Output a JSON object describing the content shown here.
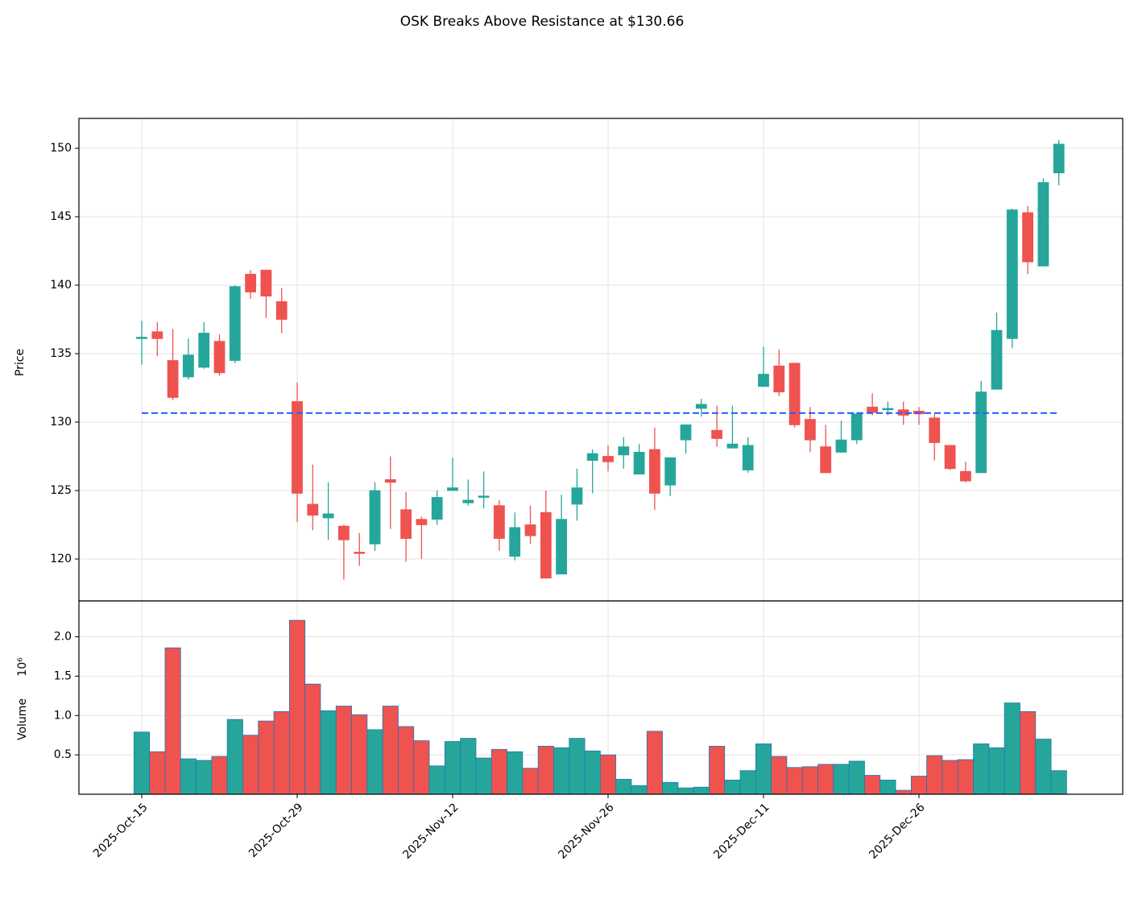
{
  "chart_data": {
    "type": "candlestick",
    "title": "OSK Breaks Above Resistance at $130.66",
    "ylabel": "Price",
    "ylim": [
      116.94,
      152.18
    ],
    "yticks": [
      120,
      125,
      130,
      135,
      140,
      145,
      150
    ],
    "grid": true,
    "up_color": "#26a69a",
    "down_color": "#ef5350",
    "resistance": 130.66,
    "resistance_color": "#2962ff",
    "categories": [
      "2025-Oct-15",
      null,
      null,
      null,
      null,
      null,
      null,
      null,
      null,
      null,
      "2025-Oct-29",
      null,
      null,
      null,
      null,
      null,
      null,
      null,
      null,
      null,
      "2025-Nov-12",
      null,
      null,
      null,
      null,
      null,
      null,
      null,
      null,
      null,
      "2025-Nov-26",
      null,
      null,
      null,
      null,
      null,
      null,
      null,
      null,
      null,
      "2025-Dec-11",
      null,
      null,
      null,
      null,
      null,
      null,
      null,
      null,
      null,
      "2025-Dec-26",
      null,
      null,
      null,
      null,
      null,
      null,
      null,
      null,
      null
    ],
    "open": [
      136.1,
      136.6,
      134.5,
      133.3,
      134.0,
      135.9,
      134.5,
      140.8,
      141.1,
      138.8,
      131.5,
      124.0,
      123.0,
      122.4,
      120.5,
      121.1,
      125.8,
      123.6,
      122.9,
      122.9,
      125.0,
      124.1,
      124.5,
      123.9,
      120.2,
      122.5,
      123.4,
      118.9,
      124.0,
      127.2,
      127.5,
      127.6,
      126.2,
      128.0,
      125.4,
      128.7,
      131.0,
      129.4,
      128.1,
      126.5,
      132.6,
      134.1,
      134.3,
      130.2,
      128.2,
      127.8,
      128.7,
      131.1,
      130.9,
      130.9,
      130.8,
      130.3,
      128.3,
      126.4,
      126.3,
      132.4,
      136.1,
      145.3,
      141.4,
      148.2
    ],
    "high": [
      137.4,
      137.3,
      136.8,
      136.1,
      137.3,
      136.4,
      140.0,
      141.1,
      141.1,
      139.8,
      132.9,
      126.9,
      125.6,
      122.5,
      121.9,
      125.6,
      127.5,
      124.9,
      123.1,
      125.0,
      127.4,
      125.8,
      126.4,
      124.3,
      123.4,
      123.9,
      125.0,
      124.7,
      126.6,
      128.0,
      128.3,
      128.9,
      128.4,
      129.6,
      127.4,
      129.8,
      131.7,
      131.2,
      131.2,
      128.9,
      135.5,
      135.3,
      134.3,
      131.1,
      129.8,
      130.1,
      130.7,
      132.1,
      131.5,
      131.5,
      131.1,
      130.6,
      128.3,
      127.1,
      133.0,
      138.0,
      145.6,
      145.8,
      147.8,
      150.6
    ],
    "low": [
      134.2,
      134.8,
      131.6,
      133.1,
      133.9,
      133.4,
      134.3,
      139.0,
      137.6,
      136.5,
      122.7,
      122.1,
      121.4,
      118.5,
      119.5,
      120.6,
      122.2,
      119.8,
      120.0,
      122.5,
      125.0,
      123.9,
      123.7,
      120.6,
      119.9,
      121.1,
      118.6,
      118.9,
      122.8,
      124.8,
      126.4,
      126.6,
      126.2,
      123.6,
      124.6,
      127.7,
      130.4,
      128.2,
      128.1,
      126.3,
      132.6,
      131.9,
      129.6,
      127.8,
      126.3,
      127.8,
      128.4,
      130.5,
      130.5,
      129.8,
      129.8,
      127.2,
      126.5,
      125.6,
      126.3,
      132.4,
      135.4,
      140.8,
      141.4,
      147.3
    ],
    "close": [
      136.2,
      136.1,
      131.8,
      134.9,
      136.5,
      133.6,
      139.9,
      139.5,
      139.2,
      137.5,
      124.8,
      123.2,
      123.3,
      121.4,
      120.4,
      125.0,
      125.6,
      121.5,
      122.5,
      124.5,
      125.2,
      124.3,
      124.6,
      121.5,
      122.3,
      121.7,
      118.6,
      122.9,
      125.2,
      127.7,
      127.1,
      128.2,
      127.8,
      124.8,
      127.4,
      129.8,
      131.3,
      128.8,
      128.4,
      128.3,
      133.5,
      132.2,
      129.8,
      128.7,
      126.3,
      128.7,
      130.6,
      130.7,
      131.0,
      130.5,
      130.6,
      128.5,
      126.6,
      125.7,
      132.2,
      136.7,
      145.5,
      141.7,
      147.5,
      150.3
    ],
    "volume": {
      "ylabel": "Volume",
      "scale_label": "10⁶",
      "ylim": [
        0,
        2.456
      ],
      "yticks": [
        0.5,
        {
          "value": 1.0,
          "label": "1.0"
        },
        1.5,
        {
          "value": 2.0,
          "label": "2.0"
        }
      ],
      "edge_color": "#1f77b4",
      "values": [
        0.79,
        0.54,
        1.86,
        0.45,
        0.43,
        0.48,
        0.95,
        0.75,
        0.93,
        1.05,
        2.21,
        1.4,
        1.06,
        1.12,
        1.01,
        0.82,
        1.12,
        0.86,
        0.68,
        0.36,
        0.67,
        0.71,
        0.46,
        0.57,
        0.54,
        0.33,
        0.61,
        0.59,
        0.71,
        0.55,
        0.5,
        0.19,
        0.11,
        0.8,
        0.15,
        0.08,
        0.09,
        0.61,
        0.18,
        0.3,
        0.64,
        0.48,
        0.34,
        0.35,
        0.38,
        0.38,
        0.42,
        0.24,
        0.18,
        0.05,
        0.23,
        0.49,
        0.43,
        0.44,
        0.64,
        0.59,
        1.16,
        1.05,
        0.7,
        0.3
      ]
    }
  }
}
